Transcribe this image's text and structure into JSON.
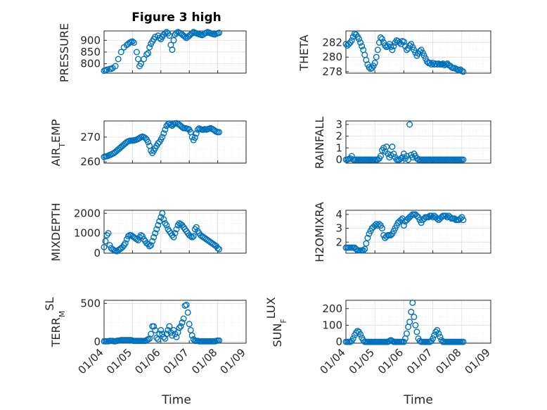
{
  "figure": {
    "marker_color": "#0072BD",
    "x_ticks": [
      "01/04",
      "01/05",
      "01/06",
      "01/07",
      "01/08",
      "01/09"
    ],
    "xlabel": "Time"
  },
  "chart_data": [
    {
      "type": "scatter",
      "title": "Figure 3 high",
      "ylabel": "PRESSURE",
      "xlim": [
        4,
        9
      ],
      "ylim": [
        760,
        940
      ],
      "yticks": [
        800,
        850,
        900
      ],
      "x": [
        4.0,
        4.05,
        4.1,
        4.2,
        4.25,
        4.3,
        4.4,
        4.5,
        4.6,
        4.7,
        4.8,
        4.85,
        4.9,
        4.95,
        5.0,
        5.05,
        5.15,
        5.2,
        5.25,
        5.3,
        5.4,
        5.5,
        5.55,
        5.6,
        5.65,
        5.7,
        5.75,
        5.8,
        5.9,
        5.95,
        6.0,
        6.05,
        6.1,
        6.15,
        6.2,
        6.25,
        6.3,
        6.35,
        6.4,
        6.45,
        6.5,
        6.55,
        6.6,
        6.65,
        6.7,
        6.75,
        6.8,
        6.85,
        6.9,
        6.95,
        7.0,
        7.05,
        7.1,
        7.15,
        7.2,
        7.25,
        7.3,
        7.35,
        7.4,
        7.45,
        7.5,
        7.55,
        7.6,
        7.65,
        7.7,
        7.75,
        7.8,
        7.85,
        7.9,
        7.95,
        8.0,
        8.05
      ],
      "y": [
        770,
        772,
        775,
        778,
        778,
        782,
        790,
        820,
        850,
        870,
        880,
        885,
        890,
        893,
        895,
        890,
        850,
        820,
        790,
        800,
        820,
        840,
        845,
        870,
        885,
        895,
        905,
        915,
        920,
        910,
        905,
        915,
        925,
        930,
        935,
        930,
        920,
        880,
        860,
        900,
        925,
        930,
        935,
        932,
        930,
        925,
        920,
        915,
        910,
        915,
        920,
        925,
        930,
        935,
        932,
        930,
        928,
        926,
        924,
        922,
        925,
        930,
        932,
        935,
        933,
        930,
        928,
        926,
        925,
        928,
        930,
        932
      ]
    },
    {
      "type": "scatter",
      "title": "",
      "ylabel": "THETA",
      "xlim": [
        4,
        9
      ],
      "ylim": [
        277.8,
        283.6
      ],
      "yticks": [
        278,
        280,
        282
      ],
      "x": [
        4.0,
        4.05,
        4.1,
        4.15,
        4.2,
        4.25,
        4.3,
        4.35,
        4.4,
        4.45,
        4.5,
        4.55,
        4.6,
        4.65,
        4.7,
        4.75,
        4.8,
        4.85,
        4.9,
        4.95,
        5.0,
        5.05,
        5.1,
        5.15,
        5.2,
        5.25,
        5.3,
        5.35,
        5.4,
        5.45,
        5.5,
        5.55,
        5.6,
        5.65,
        5.7,
        5.75,
        5.8,
        5.85,
        5.9,
        5.95,
        6.0,
        6.05,
        6.1,
        6.15,
        6.2,
        6.25,
        6.3,
        6.35,
        6.4,
        6.45,
        6.5,
        6.55,
        6.6,
        6.65,
        6.7,
        6.75,
        6.8,
        6.85,
        6.9,
        6.95,
        7.0,
        7.05,
        7.1,
        7.15,
        7.2,
        7.25,
        7.3,
        7.35,
        7.4,
        7.45,
        7.5,
        7.55,
        7.6,
        7.65,
        7.7,
        7.75,
        7.8,
        7.85,
        7.9,
        7.95,
        8.0,
        8.05
      ],
      "y": [
        281.8,
        281.6,
        281.8,
        282.0,
        282.3,
        282.8,
        283.2,
        283.1,
        282.8,
        282.5,
        282.0,
        281.5,
        281.0,
        280.3,
        279.6,
        279.0,
        278.6,
        278.4,
        278.5,
        278.8,
        279.2,
        280.0,
        281.0,
        282.0,
        282.7,
        282.5,
        282.0,
        281.6,
        281.4,
        281.5,
        281.8,
        281.4,
        281.0,
        281.5,
        282.0,
        282.3,
        282.2,
        282.0,
        281.8,
        282.2,
        282.1,
        281.5,
        281.0,
        281.2,
        281.6,
        281.8,
        281.4,
        281.0,
        280.6,
        280.2,
        280.5,
        280.8,
        281.0,
        280.6,
        280.2,
        279.8,
        279.4,
        279.2,
        279.2,
        279.0,
        279.2,
        279.0,
        279.1,
        279.0,
        279.1,
        279.0,
        279.0,
        279.1,
        278.9,
        279.0,
        279.1,
        278.9,
        278.8,
        278.6,
        278.5,
        278.5,
        278.4,
        278.3,
        278.2,
        278.3,
        278.1,
        278.0
      ]
    },
    {
      "type": "scatter",
      "title": "",
      "ylabel": "AIR_TEMP",
      "xlim": [
        4,
        9
      ],
      "ylim": [
        259.5,
        276.5
      ],
      "yticks": [
        260,
        270
      ],
      "x": [
        4.0,
        4.05,
        4.1,
        4.15,
        4.2,
        4.25,
        4.3,
        4.35,
        4.4,
        4.45,
        4.5,
        4.55,
        4.6,
        4.65,
        4.7,
        4.75,
        4.8,
        4.85,
        4.9,
        4.95,
        5.0,
        5.05,
        5.1,
        5.15,
        5.2,
        5.25,
        5.3,
        5.35,
        5.4,
        5.45,
        5.5,
        5.55,
        5.6,
        5.65,
        5.7,
        5.75,
        5.8,
        5.85,
        5.9,
        5.95,
        6.0,
        6.05,
        6.1,
        6.15,
        6.2,
        6.25,
        6.3,
        6.35,
        6.4,
        6.45,
        6.5,
        6.55,
        6.6,
        6.65,
        6.7,
        6.75,
        6.8,
        6.85,
        6.9,
        6.95,
        7.0,
        7.05,
        7.1,
        7.15,
        7.2,
        7.25,
        7.3,
        7.35,
        7.4,
        7.45,
        7.5,
        7.55,
        7.6,
        7.65,
        7.7,
        7.75,
        7.8,
        7.85,
        7.9,
        7.95,
        8.0,
        8.05
      ],
      "y": [
        262.0,
        262.2,
        262.3,
        262.5,
        262.8,
        263.0,
        263.3,
        263.6,
        264.0,
        264.5,
        265.0,
        265.5,
        266.0,
        266.5,
        267.0,
        267.5,
        268.0,
        268.3,
        268.5,
        268.6,
        268.6,
        268.7,
        268.8,
        269.0,
        269.3,
        269.6,
        270.0,
        270.2,
        270.0,
        269.6,
        269.0,
        268.0,
        266.5,
        264.5,
        263.6,
        264.5,
        265.5,
        266.5,
        267.5,
        268.0,
        269.0,
        270.0,
        271.5,
        273.0,
        274.5,
        275.2,
        275.5,
        275.0,
        274.6,
        275.2,
        275.5,
        275.6,
        275.3,
        275.0,
        274.5,
        274.0,
        273.6,
        273.6,
        273.5,
        273.3,
        273.0,
        272.0,
        270.0,
        268.8,
        269.8,
        271.5,
        273.0,
        273.5,
        273.2,
        273.0,
        273.0,
        273.2,
        273.0,
        273.2,
        273.4,
        273.6,
        273.3,
        273.0,
        272.6,
        272.2,
        272.0,
        272.0
      ]
    },
    {
      "type": "scatter",
      "title": "",
      "ylabel": "RAINFALL",
      "xlim": [
        4,
        9
      ],
      "ylim": [
        -0.3,
        3.3
      ],
      "yticks": [
        0,
        1,
        2,
        3
      ],
      "x": [
        4.0,
        4.05,
        4.1,
        4.15,
        4.2,
        4.25,
        4.3,
        4.35,
        4.4,
        4.45,
        4.5,
        4.55,
        4.6,
        4.65,
        4.7,
        4.75,
        4.8,
        4.85,
        4.9,
        4.95,
        5.0,
        5.05,
        5.1,
        5.15,
        5.2,
        5.25,
        5.3,
        5.35,
        5.4,
        5.45,
        5.5,
        5.55,
        5.6,
        5.65,
        5.7,
        5.75,
        5.8,
        5.85,
        5.9,
        5.95,
        6.0,
        6.05,
        6.1,
        6.15,
        6.2,
        6.25,
        6.3,
        6.35,
        6.4,
        6.45,
        6.5,
        6.55,
        6.6,
        6.65,
        6.7,
        6.75,
        6.8,
        6.85,
        6.9,
        6.95,
        7.0,
        7.05,
        7.1,
        7.15,
        7.2,
        7.25,
        7.3,
        7.35,
        7.4,
        7.45,
        7.5,
        7.55,
        7.6,
        7.65,
        7.7,
        7.75,
        7.8,
        7.85,
        7.9,
        7.95,
        8.0,
        8.05
      ],
      "y": [
        0,
        0,
        0.05,
        0.1,
        0.3,
        0,
        0,
        0,
        0,
        0,
        0,
        0,
        0,
        0,
        0,
        0,
        0,
        0,
        0,
        0,
        0,
        0,
        0,
        0.1,
        0.3,
        0.8,
        1.0,
        0.7,
        1.1,
        0.5,
        0.2,
        0.4,
        1.1,
        0.5,
        0.2,
        0,
        0,
        0,
        0.1,
        0.2,
        0.5,
        0.1,
        0.3,
        0,
        3.0,
        0.4,
        0.2,
        0.5,
        0.3,
        0.1,
        0,
        0,
        0,
        0,
        0,
        0,
        0,
        0,
        0,
        0,
        0,
        0,
        0,
        0,
        0,
        0,
        0,
        0,
        0,
        0,
        0,
        0,
        0,
        0,
        0,
        0,
        0,
        0,
        0,
        0,
        0,
        0
      ]
    },
    {
      "type": "scatter",
      "title": "",
      "ylabel": "MIXDEPTH",
      "xlim": [
        4,
        9
      ],
      "ylim": [
        0,
        2150
      ],
      "yticks": [
        0,
        1000,
        2000
      ],
      "x": [
        4.0,
        4.05,
        4.1,
        4.15,
        4.2,
        4.25,
        4.3,
        4.35,
        4.4,
        4.45,
        4.5,
        4.55,
        4.6,
        4.65,
        4.7,
        4.75,
        4.8,
        4.85,
        4.9,
        4.95,
        5.0,
        5.05,
        5.1,
        5.15,
        5.2,
        5.25,
        5.3,
        5.35,
        5.4,
        5.45,
        5.5,
        5.55,
        5.6,
        5.65,
        5.7,
        5.75,
        5.8,
        5.85,
        5.9,
        5.95,
        6.0,
        6.05,
        6.1,
        6.15,
        6.2,
        6.25,
        6.3,
        6.35,
        6.4,
        6.45,
        6.5,
        6.55,
        6.6,
        6.65,
        6.7,
        6.75,
        6.8,
        6.85,
        6.9,
        6.95,
        7.0,
        7.05,
        7.1,
        7.15,
        7.2,
        7.25,
        7.3,
        7.35,
        7.4,
        7.45,
        7.5,
        7.55,
        7.6,
        7.65,
        7.7,
        7.75,
        7.8,
        7.85,
        7.9,
        7.95,
        8.0,
        8.05
      ],
      "y": [
        300,
        600,
        900,
        1000,
        400,
        250,
        200,
        150,
        120,
        100,
        150,
        200,
        250,
        300,
        400,
        500,
        700,
        850,
        900,
        900,
        850,
        800,
        750,
        700,
        650,
        800,
        900,
        850,
        700,
        600,
        500,
        450,
        350,
        400,
        600,
        800,
        1000,
        1200,
        1400,
        1600,
        1800,
        2000,
        1700,
        1500,
        1400,
        1200,
        1100,
        1000,
        900,
        800,
        1000,
        1200,
        1400,
        1500,
        1450,
        1400,
        1300,
        1200,
        1100,
        1000,
        900,
        850,
        800,
        850,
        1200,
        1300,
        1100,
        1000,
        900,
        850,
        800,
        750,
        700,
        650,
        600,
        550,
        500,
        450,
        400,
        350,
        250,
        200
      ]
    },
    {
      "type": "scatter",
      "title": "",
      "ylabel": "H2OMIXRA",
      "xlim": [
        4,
        9
      ],
      "ylim": [
        1.2,
        4.3
      ],
      "yticks": [
        2,
        3,
        4
      ],
      "x": [
        4.0,
        4.05,
        4.1,
        4.15,
        4.2,
        4.25,
        4.3,
        4.35,
        4.4,
        4.45,
        4.5,
        4.55,
        4.6,
        4.65,
        4.7,
        4.75,
        4.8,
        4.85,
        4.9,
        4.95,
        5.0,
        5.05,
        5.1,
        5.15,
        5.2,
        5.25,
        5.3,
        5.35,
        5.4,
        5.45,
        5.5,
        5.55,
        5.6,
        5.65,
        5.7,
        5.75,
        5.8,
        5.85,
        5.9,
        5.95,
        6.0,
        6.05,
        6.1,
        6.15,
        6.2,
        6.25,
        6.3,
        6.35,
        6.4,
        6.45,
        6.5,
        6.55,
        6.6,
        6.65,
        6.7,
        6.75,
        6.8,
        6.85,
        6.9,
        6.95,
        7.0,
        7.05,
        7.1,
        7.15,
        7.2,
        7.25,
        7.3,
        7.35,
        7.4,
        7.45,
        7.5,
        7.55,
        7.6,
        7.65,
        7.7,
        7.75,
        7.8,
        7.85,
        7.9,
        7.95,
        8.0,
        8.05
      ],
      "y": [
        1.6,
        1.6,
        1.6,
        1.6,
        1.6,
        1.6,
        1.6,
        1.5,
        1.4,
        1.4,
        1.4,
        1.4,
        1.4,
        1.5,
        1.9,
        2.3,
        2.6,
        2.8,
        3.0,
        3.1,
        3.2,
        3.3,
        3.2,
        3.3,
        3.2,
        3.0,
        2.5,
        2.3,
        2.4,
        2.5,
        2.5,
        2.5,
        2.6,
        2.8,
        3.0,
        3.2,
        3.4,
        3.5,
        3.6,
        3.7,
        3.2,
        3.5,
        3.6,
        3.7,
        3.8,
        3.9,
        4.0,
        4.0,
        4.0,
        3.9,
        3.8,
        3.6,
        3.4,
        3.6,
        3.7,
        3.8,
        3.8,
        3.8,
        3.9,
        3.9,
        3.8,
        3.9,
        3.8,
        3.7,
        3.6,
        3.7,
        3.8,
        3.9,
        3.9,
        3.9,
        3.8,
        3.9,
        3.8,
        3.7,
        3.7,
        3.7,
        3.6,
        3.6,
        3.6,
        3.7,
        3.8,
        3.6
      ]
    },
    {
      "type": "scatter",
      "title": "",
      "ylabel": "TERR_MSL",
      "xlim": [
        4,
        9
      ],
      "ylim": [
        -20,
        540
      ],
      "yticks": [
        0,
        500
      ],
      "x": [
        4.0,
        4.05,
        4.1,
        4.15,
        4.2,
        4.25,
        4.3,
        4.35,
        4.4,
        4.45,
        4.5,
        4.55,
        4.6,
        4.65,
        4.7,
        4.75,
        4.8,
        4.85,
        4.9,
        4.95,
        5.0,
        5.05,
        5.1,
        5.15,
        5.2,
        5.25,
        5.3,
        5.35,
        5.4,
        5.45,
        5.5,
        5.55,
        5.6,
        5.65,
        5.7,
        5.75,
        5.8,
        5.85,
        5.9,
        5.95,
        6.0,
        6.05,
        6.1,
        6.15,
        6.2,
        6.25,
        6.3,
        6.35,
        6.4,
        6.45,
        6.5,
        6.55,
        6.6,
        6.65,
        6.7,
        6.75,
        6.8,
        6.85,
        6.9,
        6.95,
        7.0,
        7.05,
        7.1,
        7.15,
        7.2,
        7.25,
        7.3,
        7.35,
        7.4,
        7.45,
        7.5,
        7.55,
        7.6,
        7.65,
        7.7,
        7.75,
        7.8,
        7.85,
        7.9,
        7.95,
        8.0,
        8.05
      ],
      "y": [
        5,
        5,
        5,
        5,
        10,
        10,
        10,
        5,
        5,
        10,
        15,
        15,
        20,
        20,
        20,
        20,
        20,
        20,
        20,
        20,
        15,
        10,
        10,
        10,
        10,
        10,
        10,
        10,
        10,
        10,
        20,
        30,
        40,
        100,
        200,
        200,
        150,
        50,
        30,
        100,
        150,
        100,
        60,
        40,
        100,
        150,
        200,
        120,
        80,
        150,
        100,
        60,
        120,
        180,
        200,
        250,
        300,
        470,
        480,
        380,
        230,
        150,
        80,
        30,
        10,
        10,
        10,
        5,
        5,
        5,
        5,
        5,
        5,
        5,
        5,
        5,
        5,
        5,
        5,
        10,
        15,
        15
      ]
    },
    {
      "type": "scatter",
      "title": "",
      "ylabel": "SUN_FLUX",
      "xlim": [
        4,
        9
      ],
      "ylim": [
        -8,
        250
      ],
      "yticks": [
        0,
        100,
        200
      ],
      "x": [
        4.0,
        4.05,
        4.1,
        4.15,
        4.2,
        4.25,
        4.3,
        4.35,
        4.4,
        4.45,
        4.5,
        4.55,
        4.6,
        4.65,
        4.7,
        4.75,
        4.8,
        4.85,
        4.9,
        4.95,
        5.0,
        5.05,
        5.1,
        5.15,
        5.2,
        5.25,
        5.3,
        5.35,
        5.4,
        5.45,
        5.5,
        5.55,
        5.6,
        5.65,
        5.7,
        5.75,
        5.8,
        5.85,
        5.9,
        5.95,
        6.0,
        6.05,
        6.1,
        6.15,
        6.2,
        6.25,
        6.3,
        6.35,
        6.4,
        6.45,
        6.5,
        6.55,
        6.6,
        6.65,
        6.7,
        6.75,
        6.8,
        6.85,
        6.9,
        6.95,
        7.0,
        7.05,
        7.1,
        7.15,
        7.2,
        7.25,
        7.3,
        7.35,
        7.4,
        7.45,
        7.5,
        7.55,
        7.6,
        7.65,
        7.7,
        7.75,
        7.8,
        7.85,
        7.9,
        7.95,
        8.0,
        8.05
      ],
      "y": [
        0,
        0,
        0,
        0,
        5,
        20,
        40,
        55,
        65,
        60,
        45,
        25,
        10,
        0,
        0,
        0,
        0,
        0,
        0,
        0,
        0,
        0,
        0,
        0,
        0,
        0,
        0,
        0,
        0,
        0,
        5,
        10,
        5,
        0,
        0,
        0,
        0,
        0,
        0,
        0,
        0,
        20,
        50,
        90,
        120,
        180,
        235,
        150,
        100,
        60,
        20,
        5,
        0,
        0,
        0,
        0,
        0,
        0,
        0,
        5,
        20,
        40,
        60,
        70,
        50,
        30,
        10,
        0,
        0,
        0,
        0,
        0,
        0,
        0,
        0,
        0,
        0,
        0,
        0,
        0,
        0,
        0
      ]
    }
  ]
}
